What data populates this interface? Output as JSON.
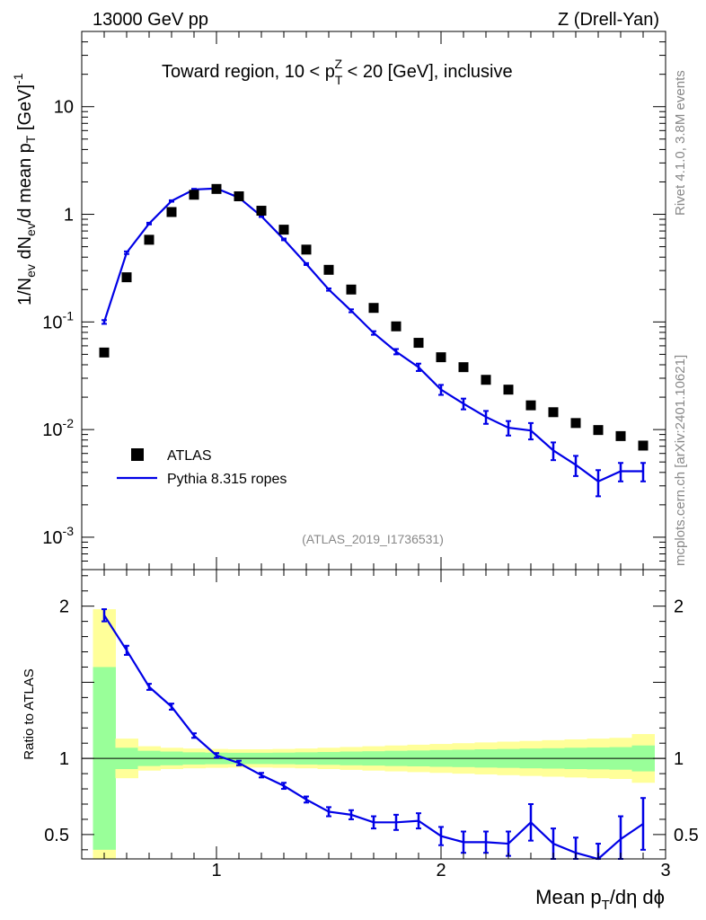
{
  "header": {
    "left": "13000 GeV pp",
    "right": "Z (Drell-Yan)"
  },
  "side_labels": {
    "rivet": "Rivet 4.1.0,  3.8M events",
    "mcplots": "mcplots.cern.ch [arXiv:2401.10621]"
  },
  "colors": {
    "mc": "#0000e6",
    "data": "#000000",
    "band_inner": "#99ff99",
    "band_outer": "#ffff99"
  },
  "chart_data": [
    {
      "type": "scatter",
      "panel": "main",
      "title_parts": {
        "pre": "Toward region, 10 < p",
        "sub": "T",
        "sup": "Z",
        "post": " < 20 [GeV], inclusive"
      },
      "ylabel_parts": [
        "1/N",
        "ev",
        " dN",
        "ev",
        "/d mean p",
        "T",
        " [GeV]",
        "-1"
      ],
      "yscale": "log",
      "xlim": [
        0.4,
        3.0
      ],
      "ylim": [
        0.0005,
        50
      ],
      "yticks": [
        {
          "value": 0.001,
          "base": "10",
          "exp": "-3"
        },
        {
          "value": 0.01,
          "base": "10",
          "exp": "-2"
        },
        {
          "value": 0.1,
          "base": "10",
          "exp": "-1"
        },
        {
          "value": 1,
          "base": "1",
          "exp": ""
        },
        {
          "value": 10,
          "base": "10",
          "exp": ""
        }
      ],
      "watermark": "(ATLAS_2019_I1736531)",
      "legend": {
        "position": "bottom-left",
        "entries": [
          {
            "label": "ATLAS",
            "marker": "square"
          },
          {
            "label": "Pythia 8.315 ropes",
            "marker": "line"
          }
        ]
      },
      "series": [
        {
          "name": "ATLAS",
          "x": [
            0.5,
            0.6,
            0.7,
            0.8,
            0.9,
            1.0,
            1.1,
            1.2,
            1.3,
            1.4,
            1.5,
            1.6,
            1.7,
            1.8,
            1.9,
            2.0,
            2.1,
            2.2,
            2.3,
            2.4,
            2.5,
            2.6,
            2.7,
            2.8,
            2.9
          ],
          "y": [
            0.052,
            0.26,
            0.58,
            1.05,
            1.52,
            1.72,
            1.47,
            1.08,
            0.72,
            0.47,
            0.305,
            0.2,
            0.135,
            0.091,
            0.064,
            0.047,
            0.038,
            0.029,
            0.0235,
            0.0168,
            0.0145,
            0.0115,
            0.0099,
            0.0087,
            0.0071
          ]
        },
        {
          "name": "Pythia 8.315 ropes",
          "x": [
            0.5,
            0.6,
            0.7,
            0.8,
            0.9,
            1.0,
            1.1,
            1.2,
            1.3,
            1.4,
            1.5,
            1.6,
            1.7,
            1.8,
            1.9,
            2.0,
            2.1,
            2.2,
            2.3,
            2.4,
            2.5,
            2.6,
            2.7,
            2.8,
            2.9
          ],
          "y": [
            0.1,
            0.44,
            0.82,
            1.33,
            1.7,
            1.74,
            1.43,
            0.96,
            0.585,
            0.345,
            0.2,
            0.127,
            0.079,
            0.053,
            0.038,
            0.0235,
            0.0174,
            0.0131,
            0.0104,
            0.0098,
            0.0064,
            0.0047,
            0.0033,
            0.0041,
            0.0041
          ],
          "yerr": [
            0.004,
            0.012,
            0.015,
            0.02,
            0.025,
            0.025,
            0.022,
            0.016,
            0.011,
            0.007,
            0.005,
            0.004,
            0.003,
            0.003,
            0.003,
            0.0025,
            0.002,
            0.0018,
            0.0016,
            0.0017,
            0.0012,
            0.001,
            0.0009,
            0.0008,
            0.0008
          ]
        }
      ]
    },
    {
      "type": "line",
      "panel": "ratio",
      "ylabel": "Ratio to ATLAS",
      "xlabel_parts": [
        "Mean p",
        "T",
        "/dη dϕ"
      ],
      "xlim": [
        0.4,
        3.0
      ],
      "ylim": [
        0.34,
        2.24
      ],
      "xticks": [
        {
          "value": 1,
          "label": "1"
        },
        {
          "value": 2,
          "label": "2"
        },
        {
          "value": 3,
          "label": "3"
        }
      ],
      "yticks": [
        {
          "value": 0.5,
          "label": "0.5"
        },
        {
          "value": 1,
          "label": "1"
        },
        {
          "value": 2,
          "label": "2"
        }
      ],
      "band_edges": [
        0.45,
        0.55,
        0.65,
        0.75,
        0.85,
        0.95,
        1.05,
        1.15,
        1.25,
        1.35,
        1.45,
        1.55,
        1.65,
        1.75,
        1.85,
        1.95,
        2.05,
        2.15,
        2.25,
        2.35,
        2.45,
        2.55,
        2.65,
        2.75,
        2.85,
        2.95
      ],
      "band_inner_halfwidth": [
        0.6,
        0.07,
        0.05,
        0.045,
        0.04,
        0.038,
        0.037,
        0.037,
        0.038,
        0.04,
        0.042,
        0.045,
        0.047,
        0.05,
        0.052,
        0.055,
        0.057,
        0.06,
        0.062,
        0.065,
        0.067,
        0.07,
        0.072,
        0.074,
        0.085
      ],
      "band_outer_halfwidth": [
        0.98,
        0.13,
        0.08,
        0.07,
        0.065,
        0.062,
        0.06,
        0.06,
        0.062,
        0.065,
        0.07,
        0.075,
        0.08,
        0.085,
        0.09,
        0.095,
        0.1,
        0.105,
        0.11,
        0.115,
        0.12,
        0.125,
        0.13,
        0.135,
        0.16
      ],
      "reference_line": 1,
      "series": [
        {
          "name": "Pythia 8.315 ropes / ATLAS",
          "x": [
            0.5,
            0.6,
            0.7,
            0.8,
            0.9,
            1.0,
            1.1,
            1.2,
            1.3,
            1.4,
            1.5,
            1.6,
            1.7,
            1.8,
            1.9,
            2.0,
            2.1,
            2.2,
            2.3,
            2.4,
            2.5,
            2.6,
            2.7,
            2.8,
            2.9
          ],
          "y": [
            1.94,
            1.71,
            1.47,
            1.34,
            1.15,
            1.02,
            0.97,
            0.89,
            0.82,
            0.73,
            0.65,
            0.63,
            0.58,
            0.58,
            0.59,
            0.49,
            0.45,
            0.45,
            0.44,
            0.58,
            0.44,
            0.38,
            0.32,
            0.47,
            0.57
          ],
          "yerr": [
            0.04,
            0.03,
            0.02,
            0.02,
            0.015,
            0.015,
            0.015,
            0.015,
            0.02,
            0.02,
            0.03,
            0.03,
            0.04,
            0.05,
            0.05,
            0.06,
            0.07,
            0.07,
            0.08,
            0.12,
            0.1,
            0.1,
            0.12,
            0.15,
            0.17
          ]
        }
      ]
    }
  ]
}
